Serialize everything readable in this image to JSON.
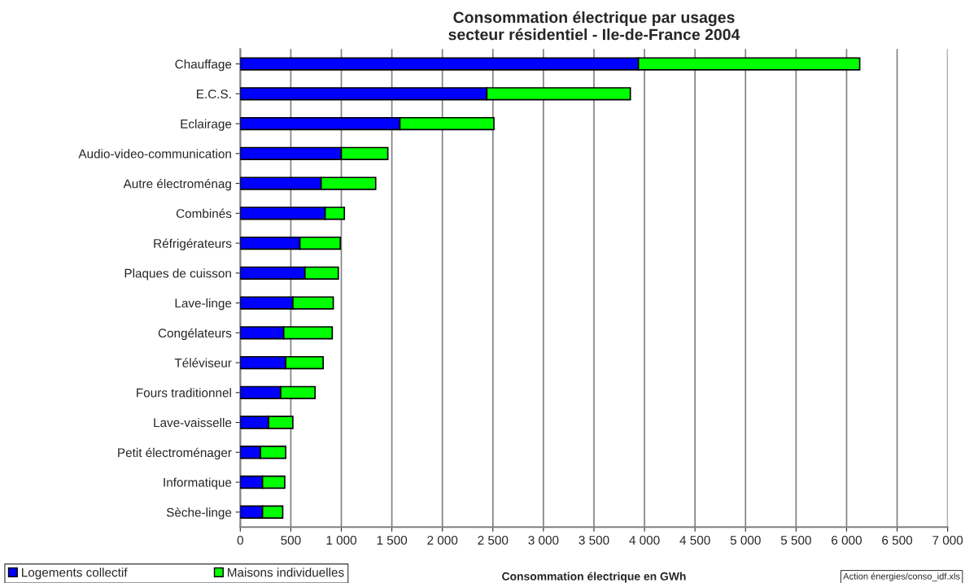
{
  "chart_data": {
    "type": "bar",
    "orientation": "horizontal",
    "stacked": true,
    "title": "Consommation électrique par usages\nsecteur résidentiel - Ile-de-France 2004",
    "xlabel": "Consommation électrique en GWh",
    "categories": [
      "Chauffage",
      "E.C.S.",
      "Eclairage",
      "Audio-video-communication",
      "Autre électroménag",
      "Combinés",
      "Réfrigérateurs",
      "Plaques de cuisson",
      "Lave-linge",
      "Congélateurs",
      "Téléviseur",
      "Fours traditionnel",
      "Lave-vaisselle",
      "Petit électroménager",
      "Informatique",
      "Sèche-linge"
    ],
    "series": [
      {
        "name": "Logements collectif",
        "color": "#0000ff",
        "values": [
          3940,
          2440,
          1580,
          1000,
          800,
          840,
          590,
          640,
          520,
          430,
          450,
          400,
          280,
          200,
          220,
          220
        ]
      },
      {
        "name": "Maisons individuelles",
        "color": "#00ff00",
        "values": [
          2190,
          1420,
          930,
          460,
          540,
          190,
          400,
          330,
          400,
          480,
          370,
          340,
          240,
          250,
          220,
          200
        ]
      }
    ],
    "xlim": [
      0,
      7000
    ],
    "xticks": [
      0,
      500,
      {
        "value": 1000,
        "label": "1 000"
      },
      {
        "value": 1500,
        "label": "1 500"
      },
      {
        "value": 2000,
        "label": "2 000"
      },
      {
        "value": 2500,
        "label": "2 500"
      },
      {
        "value": 3000,
        "label": "3 000"
      },
      {
        "value": 3500,
        "label": "3 500"
      },
      {
        "value": 4000,
        "label": "4 000"
      },
      {
        "value": 4500,
        "label": "4 500"
      },
      {
        "value": 5000,
        "label": "5 000"
      },
      {
        "value": 5500,
        "label": "5 500"
      },
      {
        "value": 6000,
        "label": "6 000"
      },
      {
        "value": 6500,
        "label": "6 500"
      },
      {
        "value": 7000,
        "label": "7 000"
      }
    ],
    "grid": "x",
    "legend": "bottom left",
    "annotations": [
      "Action énergies/conso_idf.xls"
    ]
  }
}
